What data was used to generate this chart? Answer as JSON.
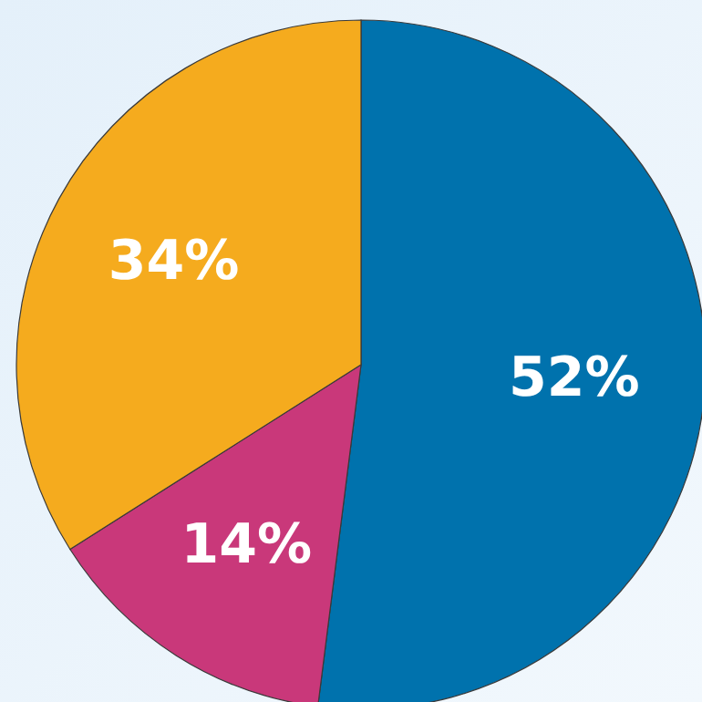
{
  "chart_data": {
    "type": "pie",
    "categories": [
      null,
      null,
      null
    ],
    "values": [
      52,
      14,
      34
    ],
    "value_labels": [
      "52%",
      "14%",
      "34%"
    ],
    "colors": [
      "#0072ad",
      "#c9387a",
      "#f5ab1e"
    ],
    "legend": false
  }
}
